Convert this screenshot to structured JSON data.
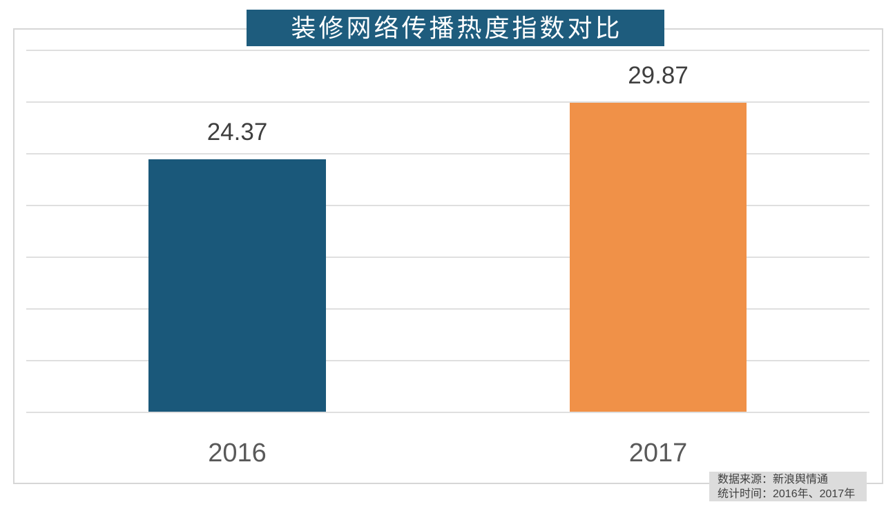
{
  "title": {
    "text": "装修网络传播热度指数对比"
  },
  "chart_data": {
    "type": "bar",
    "title": "装修网络传播热度指数对比",
    "categories": [
      "2016",
      "2017"
    ],
    "values": [
      24.37,
      29.87
    ],
    "value_labels": [
      "24.37",
      "29.87"
    ],
    "bar_colors": [
      "#1A587A",
      "#F09148"
    ],
    "xlabel": "",
    "ylabel": "",
    "ylim": [
      0,
      35
    ],
    "gridline_step": 5,
    "grid": true,
    "legend_position": "none"
  },
  "source_note": {
    "line1": "数据来源：新浪舆情通",
    "line2": "统计时间：2016年、2017年"
  },
  "colors": {
    "title_bg": "#1E5C7D",
    "title_text": "#FFFFFF",
    "bar_2016": "#1A587A",
    "bar_2017": "#F09148",
    "grid_line": "#DFDFDF",
    "chart_border": "#D6D6D6",
    "value_label": "#3F3F3F",
    "axis_label": "#595959",
    "source_bg": "#DCDCDC",
    "source_text": "#404040"
  }
}
